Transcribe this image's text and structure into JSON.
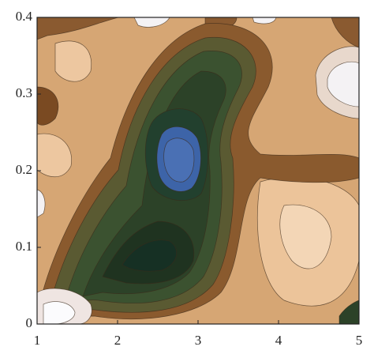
{
  "chart_data": {
    "type": "contour",
    "xlim": [
      1,
      5
    ],
    "xticks": [
      1,
      2,
      3,
      4,
      5
    ],
    "ylim": [
      0,
      0.4
    ],
    "yticks": [
      0,
      0.1,
      0.2,
      0.3,
      0.4
    ]
  }
}
